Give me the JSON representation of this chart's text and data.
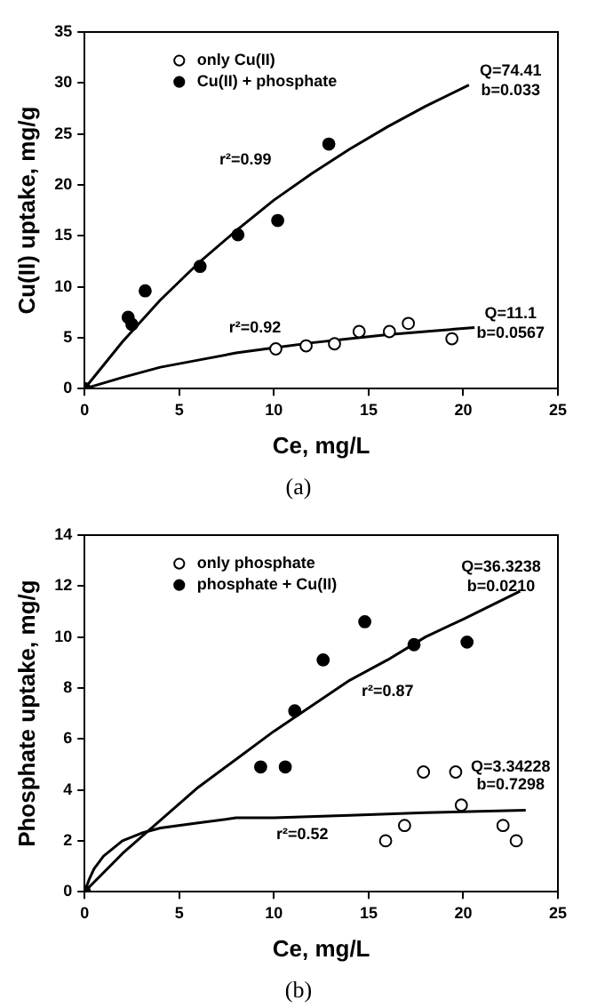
{
  "chart_data": [
    {
      "type": "scatter",
      "xlabel": "Ce, mg/L",
      "ylabel": "Cu(II) uptake, mg/g",
      "xlim": [
        0,
        25
      ],
      "xticks": [
        0,
        5,
        10,
        15,
        20,
        25
      ],
      "ylim": [
        0,
        35
      ],
      "yticks": [
        0,
        5,
        10,
        15,
        20,
        25,
        30,
        35
      ],
      "grid": false,
      "legend": "top left",
      "marker": "circle",
      "series": [
        {
          "name": "only Cu(II)",
          "color": "#ffffff",
          "x": [
            10.1,
            11.7,
            13.2,
            14.5,
            16.1,
            17.1,
            19.4
          ],
          "values": [
            3.9,
            4.2,
            4.4,
            5.6,
            5.6,
            6.4,
            4.9
          ]
        },
        {
          "name": "Cu(II) + phosphate",
          "color": "#000000",
          "x": [
            0,
            2.3,
            2.5,
            3.2,
            6.1,
            8.1,
            10.2,
            12.9
          ],
          "values": [
            0,
            7.0,
            6.3,
            9.6,
            12.0,
            15.1,
            16.5,
            24.0
          ]
        },
        {
          "type": "line",
          "color": "#000000",
          "marker": "none",
          "x": [
            0,
            2,
            4,
            6,
            8,
            10,
            12,
            14,
            16,
            18,
            20.3
          ],
          "values": [
            0,
            4.6,
            8.7,
            12.3,
            15.5,
            18.5,
            21.1,
            23.5,
            25.7,
            27.7,
            29.8
          ]
        },
        {
          "type": "line",
          "color": "#000000",
          "marker": "none",
          "x": [
            0,
            2,
            4,
            6,
            8,
            10,
            12,
            14,
            16,
            18,
            20.6
          ],
          "values": [
            0,
            1.1,
            2.1,
            2.8,
            3.5,
            4.0,
            4.5,
            4.9,
            5.3,
            5.6,
            6.0
          ]
        }
      ],
      "annotations": [
        "r²=0.99",
        "Q=74.41",
        "b=0.033",
        "r²=0.92",
        "Q=11.1",
        "b=0.0567",
        "(a)"
      ]
    },
    {
      "type": "scatter",
      "xlabel": "Ce, mg/L",
      "ylabel": "Phosphate uptake, mg/g",
      "xlim": [
        0,
        25
      ],
      "xticks": [
        0,
        5,
        10,
        15,
        20,
        25
      ],
      "ylim": [
        0,
        14
      ],
      "yticks": [
        0,
        2,
        4,
        6,
        8,
        10,
        12,
        14
      ],
      "grid": false,
      "legend": "top left",
      "marker": "circle",
      "series": [
        {
          "name": "only phosphate",
          "color": "#ffffff",
          "x": [
            15.9,
            16.9,
            17.9,
            19.6,
            19.9,
            22.1,
            22.8
          ],
          "values": [
            2.0,
            2.6,
            4.7,
            4.7,
            3.4,
            2.6,
            2.0
          ]
        },
        {
          "name": "phosphate + Cu(II)",
          "color": "#000000",
          "x": [
            0,
            9.3,
            10.6,
            11.1,
            12.6,
            14.8,
            17.4,
            20.2
          ],
          "values": [
            0,
            4.9,
            4.9,
            7.1,
            9.1,
            10.6,
            9.7,
            9.8
          ]
        },
        {
          "type": "line",
          "color": "#000000",
          "marker": "none",
          "x": [
            0,
            2,
            4,
            6,
            8,
            10,
            12,
            14,
            16,
            18,
            20,
            23
          ],
          "values": [
            0,
            1.5,
            2.8,
            4.1,
            5.2,
            6.3,
            7.3,
            8.3,
            9.1,
            10.0,
            10.7,
            11.8
          ]
        },
        {
          "type": "line",
          "color": "#000000",
          "marker": "none",
          "x": [
            0,
            0.25,
            0.5,
            1,
            2,
            3,
            4,
            6,
            8,
            10,
            14,
            18,
            23.3
          ],
          "values": [
            0,
            0.5,
            0.9,
            1.4,
            2.0,
            2.3,
            2.5,
            2.7,
            2.9,
            2.9,
            3.0,
            3.1,
            3.2
          ]
        }
      ],
      "annotations": [
        "Q=36.3238",
        "b=0.0210",
        "r²=0.87",
        "Q=3.34228",
        "b=0.7298",
        "r²=0.52",
        "(b)"
      ]
    }
  ]
}
